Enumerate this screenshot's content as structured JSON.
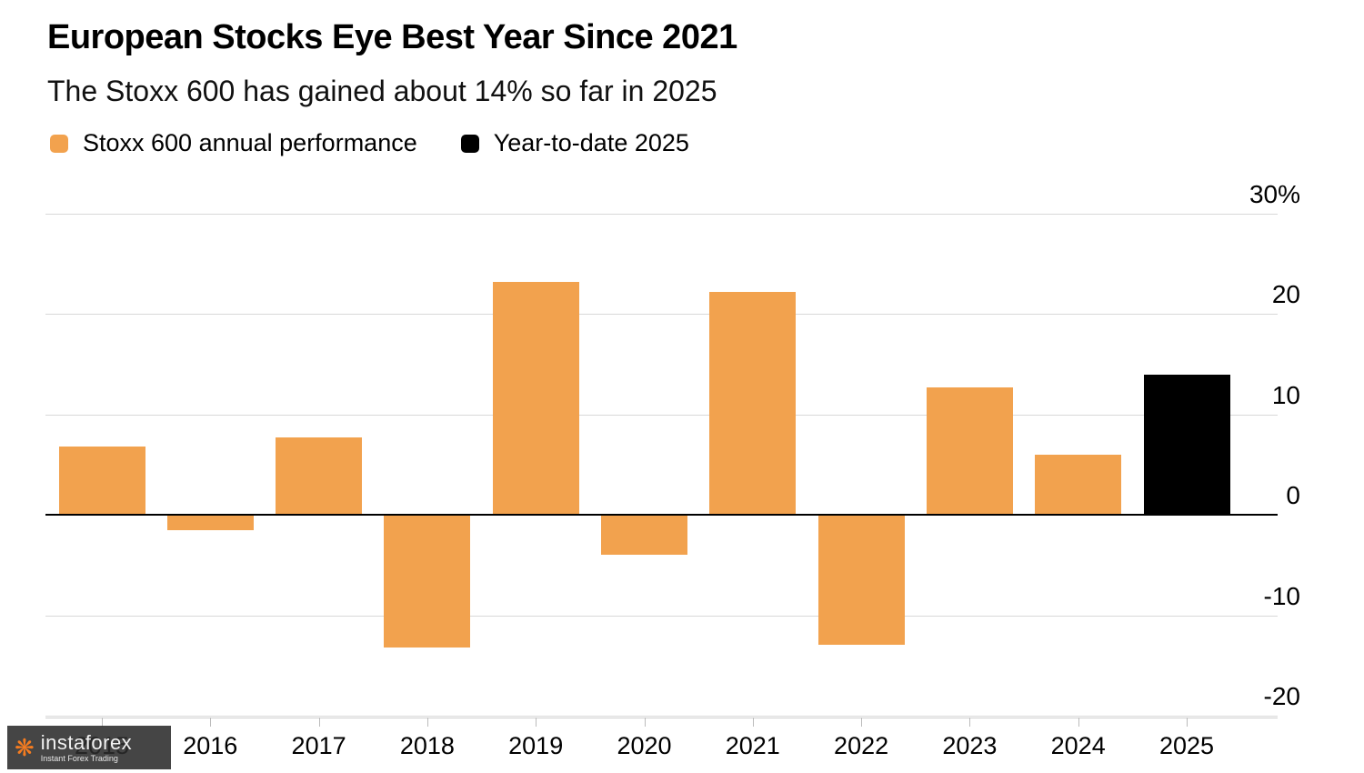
{
  "header": {
    "title": "European Stocks Eye Best Year Since 2021",
    "subtitle": "The Stoxx 600 has gained about 14% so far in 2025"
  },
  "legend": [
    {
      "label": "Stoxx 600 annual performance",
      "color": "#F2A24E"
    },
    {
      "label": "Year-to-date 2025",
      "color": "#000000"
    }
  ],
  "chart_data": {
    "type": "bar",
    "title": "European Stocks Eye Best Year Since 2021",
    "subtitle": "The Stoxx 600 has gained about 14% so far in 2025",
    "categories": [
      "2015",
      "2016",
      "2017",
      "2018",
      "2019",
      "2020",
      "2021",
      "2022",
      "2023",
      "2024",
      "2025"
    ],
    "series": [
      {
        "name": "Stoxx 600 annual performance",
        "values": [
          6.8,
          -1.5,
          7.7,
          -13.2,
          23.2,
          -4.0,
          22.2,
          -12.9,
          12.7,
          6.0,
          null
        ]
      },
      {
        "name": "Year-to-date 2025",
        "values": [
          null,
          null,
          null,
          null,
          null,
          null,
          null,
          null,
          null,
          null,
          14.0
        ]
      }
    ],
    "values": [
      6.8,
      -1.5,
      7.7,
      -13.2,
      23.2,
      -4.0,
      22.2,
      -12.9,
      12.7,
      6.0,
      14.0
    ],
    "bar_colors": [
      "#F2A24E",
      "#F2A24E",
      "#F2A24E",
      "#F2A24E",
      "#F2A24E",
      "#F2A24E",
      "#F2A24E",
      "#F2A24E",
      "#F2A24E",
      "#F2A24E",
      "#000000"
    ],
    "xlabel": "",
    "ylabel": "",
    "ylim": [
      -20,
      30
    ],
    "yticks": [
      30,
      20,
      10,
      0,
      -10,
      -20
    ],
    "ytick_labels": [
      "30%",
      "20",
      "10",
      "0",
      "-10",
      "-20"
    ],
    "grid": true,
    "legend_position": "top-left",
    "colors": {
      "annual": "#F2A24E",
      "ytd": "#000000",
      "gridline": "#d8d8d8",
      "zero_line": "#000000"
    }
  },
  "watermark": {
    "brand": "instaforex",
    "tagline": "Instant Forex Trading"
  }
}
